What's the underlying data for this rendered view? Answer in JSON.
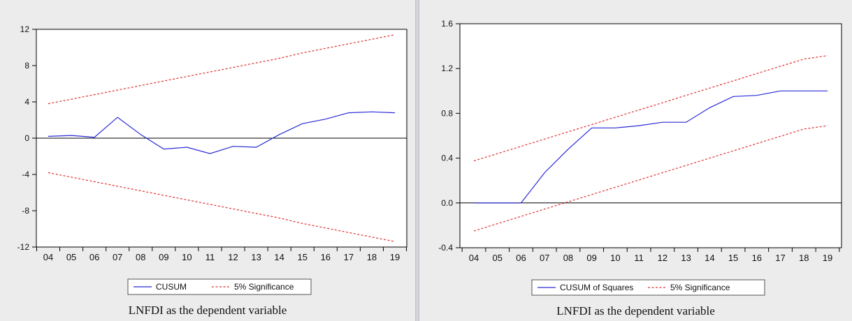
{
  "colors": {
    "cusum_line": "#2a2ad6",
    "significance_line": "#e03030",
    "zero_line": "#000000",
    "plot_background": "#ffffff",
    "figure_background": "#ececec"
  },
  "chart_data": [
    {
      "type": "line",
      "caption": "LNFDI as the dependent variable",
      "categories": [
        "04",
        "05",
        "06",
        "07",
        "08",
        "09",
        "10",
        "11",
        "12",
        "13",
        "14",
        "15",
        "16",
        "17",
        "18",
        "19"
      ],
      "ylim": [
        -12,
        12
      ],
      "yticks": [
        -12,
        -8,
        -4,
        0,
        4,
        8,
        12
      ],
      "ytick_labels": [
        "-12",
        "-8",
        "-4",
        "0",
        "4",
        "8",
        "12"
      ],
      "zero_line": 0,
      "grid": false,
      "legend_position": "bottom-center",
      "series": [
        {
          "name": "CUSUM",
          "style": "solid",
          "values": [
            0.2,
            0.3,
            0.1,
            2.3,
            0.4,
            -1.2,
            -1.0,
            -1.7,
            -0.9,
            -1.0,
            0.4,
            1.6,
            2.1,
            2.8,
            2.9,
            2.8
          ]
        },
        {
          "name": "5% Significance",
          "style": "dashed",
          "values": [
            3.8,
            4.3,
            4.8,
            5.3,
            5.8,
            6.3,
            6.8,
            7.3,
            7.8,
            8.3,
            8.8,
            9.4,
            9.9,
            10.4,
            10.9,
            11.4
          ]
        },
        {
          "name": "5% Significance",
          "style": "dashed",
          "values": [
            -3.8,
            -4.3,
            -4.8,
            -5.3,
            -5.8,
            -6.3,
            -6.8,
            -7.3,
            -7.8,
            -8.3,
            -8.8,
            -9.4,
            -9.9,
            -10.4,
            -10.9,
            -11.4
          ]
        }
      ]
    },
    {
      "type": "line",
      "caption": "LNFDI as the dependent variable",
      "categories": [
        "04",
        "05",
        "06",
        "07",
        "08",
        "09",
        "10",
        "11",
        "12",
        "13",
        "14",
        "15",
        "16",
        "17",
        "18",
        "19"
      ],
      "ylim": [
        -0.4,
        1.6
      ],
      "yticks": [
        -0.4,
        0.0,
        0.4,
        0.8,
        1.2,
        1.6
      ],
      "ytick_labels": [
        "-0.4",
        "0.0",
        "0.4",
        "0.8",
        "1.2",
        "1.6"
      ],
      "zero_line": 0,
      "grid": false,
      "legend_position": "bottom-center",
      "series": [
        {
          "name": "CUSUM of Squares",
          "style": "solid",
          "values": [
            0.0,
            0.0,
            0.0,
            0.27,
            0.48,
            0.67,
            0.67,
            0.69,
            0.72,
            0.72,
            0.85,
            0.95,
            0.96,
            1.0,
            1.0,
            1.0
          ]
        },
        {
          "name": "5% Significance",
          "style": "dashed",
          "values": [
            0.375,
            0.44,
            0.505,
            0.57,
            0.635,
            0.7,
            0.765,
            0.83,
            0.895,
            0.96,
            1.025,
            1.09,
            1.155,
            1.22,
            1.285,
            1.315
          ]
        },
        {
          "name": "5% Significance",
          "style": "dashed",
          "values": [
            -0.25,
            -0.185,
            -0.12,
            -0.055,
            0.01,
            0.075,
            0.14,
            0.205,
            0.27,
            0.335,
            0.4,
            0.465,
            0.53,
            0.595,
            0.66,
            0.69
          ]
        }
      ]
    }
  ]
}
